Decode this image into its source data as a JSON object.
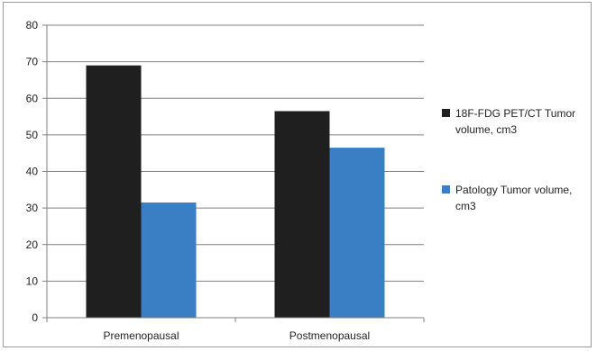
{
  "chart_data": {
    "type": "bar",
    "categories": [
      "Premenopausal",
      "Postmenopausal"
    ],
    "series": [
      {
        "name": "18F-FDG PET/CT Tumor volume, cm3",
        "values": [
          69,
          56.5
        ],
        "color": "#1f1f1f"
      },
      {
        "name": "Patology Tumor volume, cm3",
        "values": [
          31.5,
          46.5
        ],
        "color": "#3a7ec4"
      }
    ],
    "title": "",
    "xlabel": "",
    "ylabel": "",
    "ylim": [
      0,
      80
    ],
    "yticks": [
      "0",
      "10",
      "20",
      "30",
      "40",
      "50",
      "60",
      "70",
      "80"
    ],
    "grid": true,
    "legend_position": "right"
  }
}
